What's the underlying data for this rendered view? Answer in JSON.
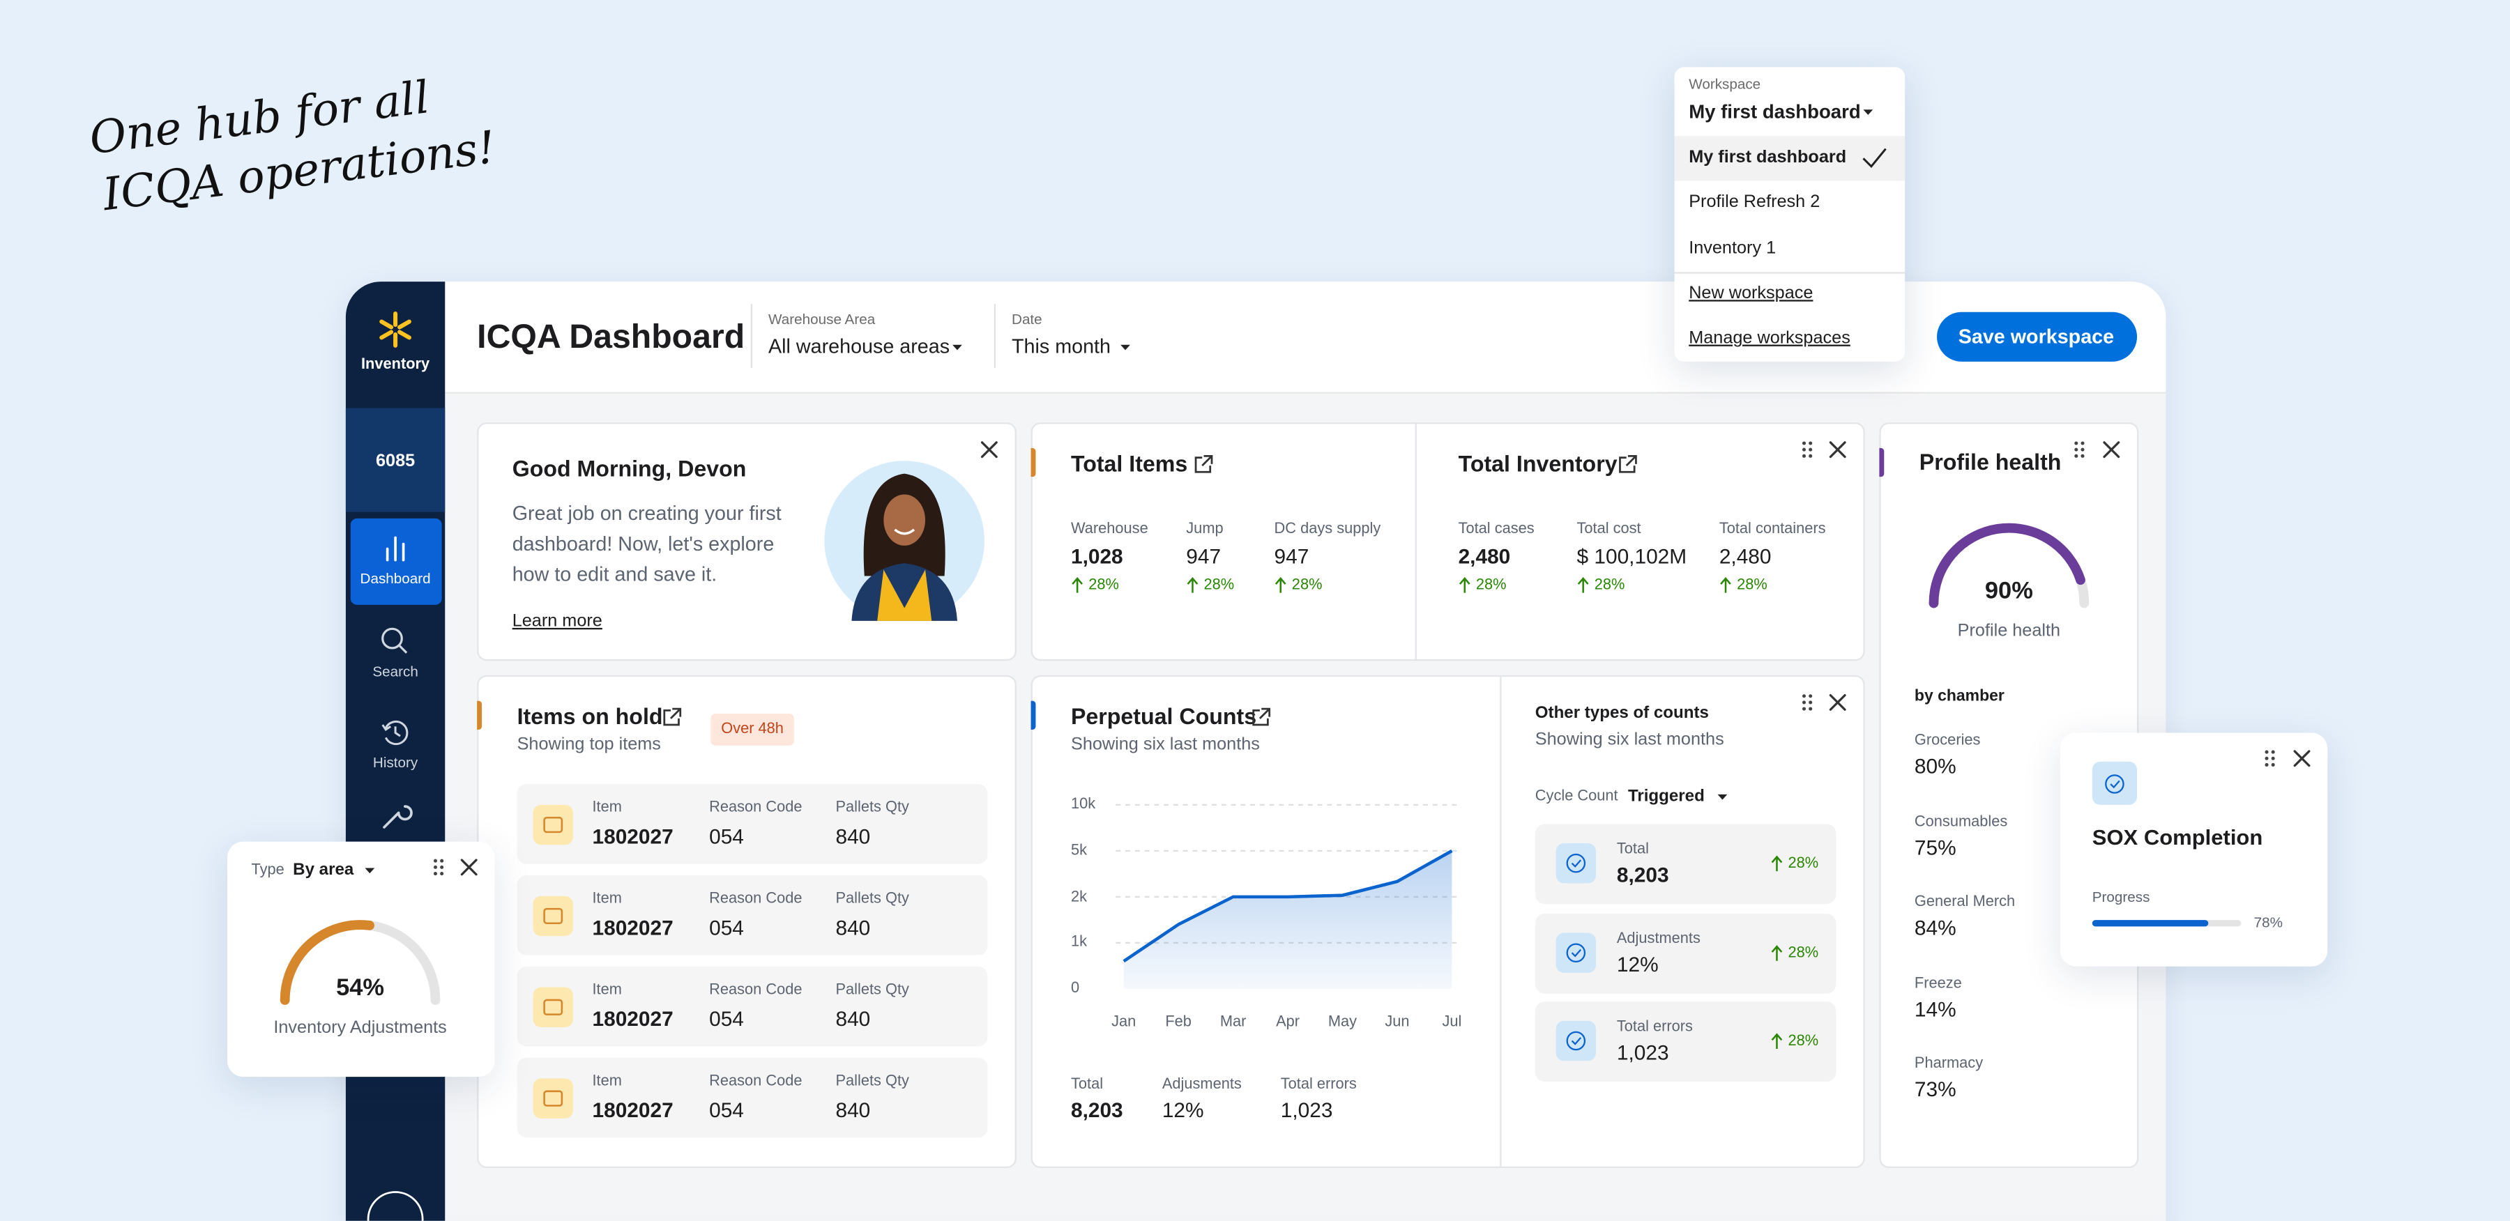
{
  "headline": [
    "One hub for all",
    "ICQA operations!"
  ],
  "sidebar": {
    "brand": "Inventory",
    "store": "6085",
    "nav": [
      "Dashboard",
      "Search",
      "History"
    ]
  },
  "header": {
    "title": "ICQA Dashboard",
    "filters": [
      {
        "label": "Warehouse Area",
        "value": "All warehouse areas"
      },
      {
        "label": "Date",
        "value": "This month"
      }
    ],
    "save": "Save workspace"
  },
  "workspace_menu": {
    "label": "Workspace",
    "value": "My first dashboard",
    "options": [
      "My first dashboard",
      "Profile Refresh 2",
      "Inventory 1"
    ],
    "links": [
      "New workspace",
      "Manage workspaces"
    ]
  },
  "greeting": {
    "title": "Good Morning, Devon",
    "text": "Great job on creating your first dashboard! Now, let's explore how to edit and save it.",
    "link": "Learn more"
  },
  "total_items": {
    "title": "Total Items",
    "metrics": [
      {
        "label": "Warehouse",
        "value": "1,028",
        "change": "28%"
      },
      {
        "label": "Jump",
        "value": "947",
        "change": "28%"
      },
      {
        "label": "DC days supply",
        "value": "947",
        "change": "28%"
      }
    ]
  },
  "total_inventory": {
    "title": "Total Inventory",
    "metrics": [
      {
        "label": "Total cases",
        "value": "2,480",
        "change": "28%"
      },
      {
        "label": "Total cost",
        "value": "$ 100,102M",
        "change": "28%"
      },
      {
        "label": "Total containers",
        "value": "2,480",
        "change": "28%"
      }
    ]
  },
  "profile_health": {
    "title": "Profile health",
    "gauge": {
      "value": 90,
      "label": "90%"
    },
    "caption": "Profile health",
    "section": "by chamber",
    "chambers": [
      {
        "name": "Groceries",
        "value": "80%"
      },
      {
        "name": "Consumables",
        "value": "75%"
      },
      {
        "name": "General Merch",
        "value": "84%"
      },
      {
        "name": "Freeze",
        "value": "14%"
      },
      {
        "name": "Pharmacy",
        "value": "73%"
      }
    ]
  },
  "items_on_hold": {
    "title": "Items on hold",
    "subtitle": "Showing top items",
    "badge": "Over 48h",
    "columns": [
      "Item",
      "Reason Code",
      "Pallets Qty"
    ],
    "rows": [
      [
        "1802027",
        "054",
        "840"
      ],
      [
        "1802027",
        "054",
        "840"
      ],
      [
        "1802027",
        "054",
        "840"
      ],
      [
        "1802027",
        "054",
        "840"
      ]
    ]
  },
  "perpetual_counts": {
    "title": "Perpetual Counts",
    "subtitle": "Showing six last months",
    "chart": {
      "type": "line",
      "categories": [
        "Jan",
        "Feb",
        "Mar",
        "Apr",
        "May",
        "Jun",
        "Jul"
      ],
      "values": [
        600,
        1400,
        2000,
        2000,
        2100,
        3000,
        5000
      ],
      "color": "#0b63ce",
      "ylim": [
        0,
        10000
      ],
      "yticks": [
        0,
        {
          "value": 1000,
          "label": "1k"
        },
        {
          "value": 2000,
          "label": "2k"
        },
        {
          "value": 5000,
          "label": "5k"
        },
        {
          "value": 10000,
          "label": "10k"
        }
      ],
      "grid": true
    },
    "summary": [
      {
        "label": "Total",
        "value": "8,203"
      },
      {
        "label": "Adjusments",
        "value": "12%"
      },
      {
        "label": "Total errors",
        "value": "1,023"
      }
    ]
  },
  "other_counts": {
    "title": "Other types of counts",
    "subtitle": "Showing six last months",
    "filter_label": "Cycle Count",
    "filter_value": "Triggered",
    "items": [
      {
        "label": "Total",
        "value": "8,203",
        "change": "28%"
      },
      {
        "label": "Adjustments",
        "value": "12%",
        "change": "28%"
      },
      {
        "label": "Total errors",
        "value": "1,023",
        "change": "28%"
      }
    ]
  },
  "adjustments_widget": {
    "type_label": "Type",
    "type_value": "By area",
    "gauge": {
      "value": 54,
      "label": "54%"
    },
    "caption": "Inventory Adjustments"
  },
  "sox": {
    "title": "SOX Completion",
    "progress_label": "Progress",
    "progress": {
      "value": 78,
      "label": "78%"
    }
  }
}
